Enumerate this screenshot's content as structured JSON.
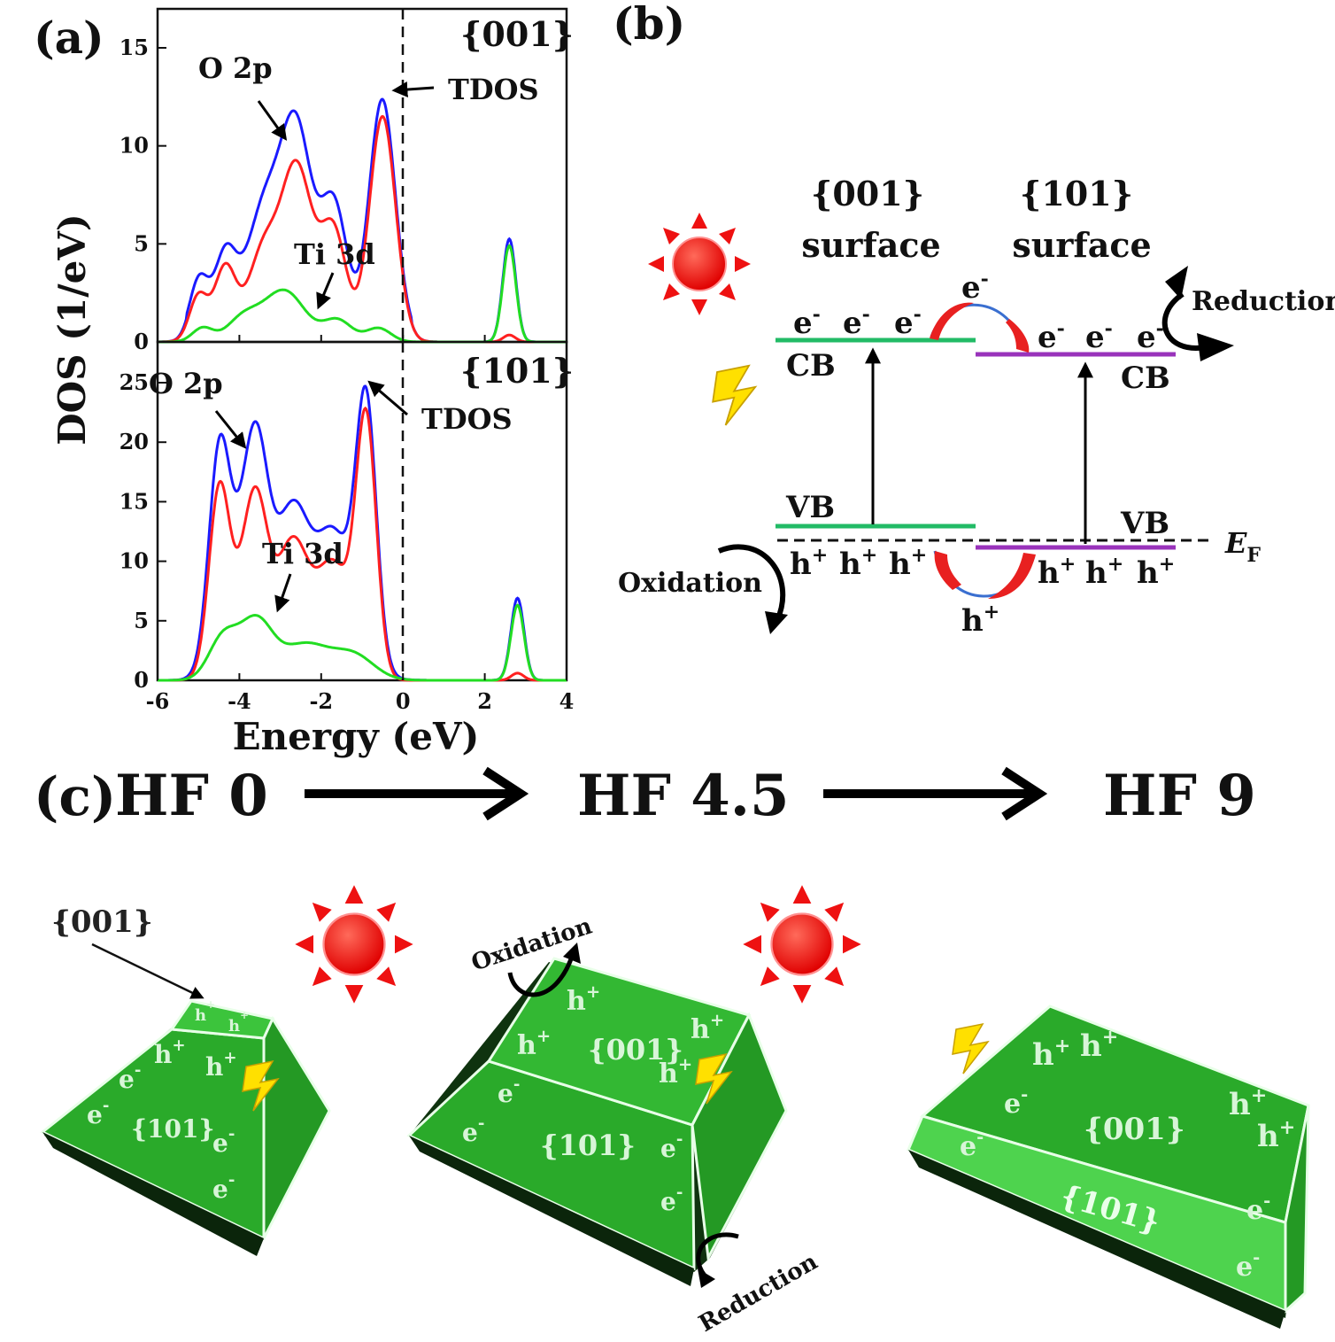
{
  "panels": {
    "a": "(a)",
    "b": "(b)",
    "c": "(c)"
  },
  "panel_a": {
    "ylabel": "DOS (1/eV)",
    "xlabel": "Energy (eV)",
    "x_ticks": [
      "-6",
      "-4",
      "-2",
      "0",
      "2",
      "4"
    ],
    "top": {
      "facet": "{001}",
      "y_ticks": [
        "0",
        "5",
        "10",
        "15"
      ],
      "labels": {
        "o2p": "O 2p",
        "ti3d": "Ti 3d",
        "tdos": "TDOS"
      }
    },
    "bottom": {
      "facet": "{101}",
      "y_ticks": [
        "0",
        "5",
        "10",
        "15",
        "20",
        "25"
      ],
      "labels": {
        "o2p": "O 2p",
        "ti3d": "Ti 3d",
        "tdos": "TDOS"
      }
    },
    "colors": {
      "tdos": "#1a1aff",
      "o2p": "#ff2020",
      "ti3d": "#22dd22"
    }
  },
  "panel_b": {
    "left_surface": {
      "facet": "{001}",
      "word": "surface"
    },
    "right_surface": {
      "facet": "{101}",
      "word": "surface"
    },
    "cb": "CB",
    "vb": "VB",
    "ef_main": "E",
    "ef_sub": "F",
    "electron": "e",
    "electron_sup": "-",
    "hole": "h",
    "hole_sup": "+",
    "reduction": "Reduction",
    "oxidation": "Oxidation",
    "colors": {
      "left_band": "#22bb66",
      "right_band": "#9933bb"
    }
  },
  "panel_c": {
    "stages": [
      "HF 0",
      "HF 4.5",
      "HF 9"
    ],
    "facet_001": "{001}",
    "facet_101": "{101}",
    "oxidation": "Oxidation",
    "reduction": "Reduction",
    "electron": "e",
    "electron_sup": "-",
    "hole": "h",
    "hole_sup": "+",
    "colors": {
      "crystal": "#2db82d",
      "crystal_light": "#4ed34e",
      "crystal_dark": "#0f3a0f"
    }
  }
}
